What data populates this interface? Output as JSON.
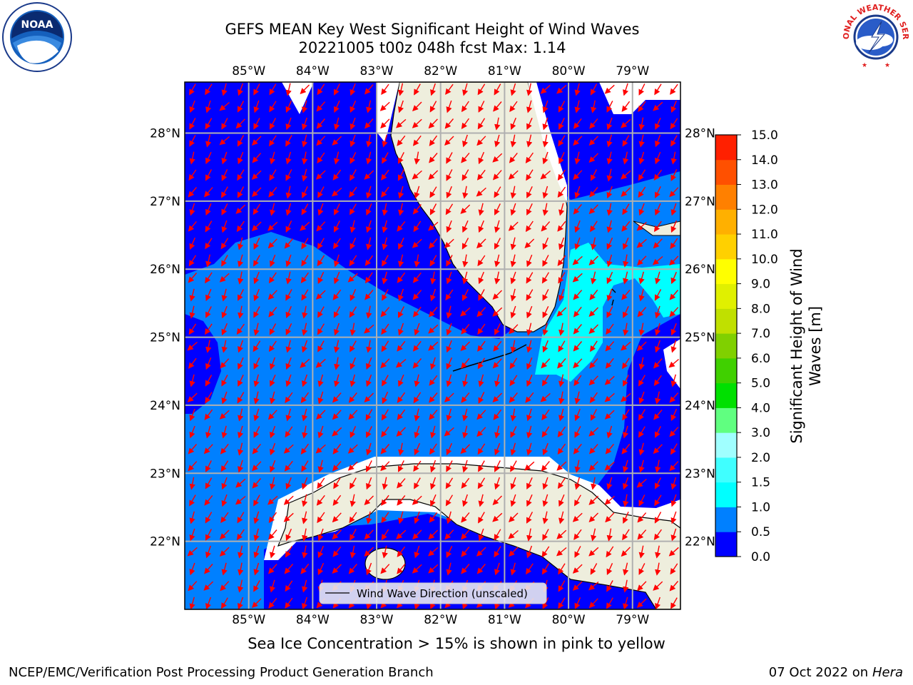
{
  "header": {
    "title_line1": "GEFS MEAN Key West Significant Height of Wind Waves",
    "title_line2": "20221005 t00z 048h fcst   Max: 1.14"
  },
  "logos": {
    "left": "noaa-logo",
    "right": "national-weather-service-logo",
    "left_text": "NOAA",
    "right_text": "NATIONAL WEATHER SERVICE"
  },
  "chart_data": {
    "type": "heatmap",
    "title": "GEFS MEAN Key West Significant Height of Wind Waves",
    "variable": "Significant Height of Wind Waves [m]",
    "max_value": 1.14,
    "lon_range": [
      -86.0,
      -78.25
    ],
    "lat_range": [
      21.0,
      28.75
    ],
    "x_tick_labels": [
      "85°W",
      "84°W",
      "83°W",
      "82°W",
      "81°W",
      "80°W",
      "79°W"
    ],
    "y_tick_labels": [
      "28°N",
      "27°N",
      "26°N",
      "25°N",
      "24°N",
      "23°N",
      "22°N"
    ],
    "grid": true,
    "legend": {
      "location": "bottom-center",
      "entries": [
        "Wind Wave Direction (unscaled)"
      ]
    },
    "colorbar": {
      "label": "Significant Height of Wind Waves [m]",
      "ticks": [
        "0.0",
        "0.5",
        "1.0",
        "1.5",
        "2.0",
        "3.0",
        "4.0",
        "5.0",
        "6.0",
        "7.0",
        "8.0",
        "9.0",
        "10.0",
        "11.0",
        "12.0",
        "13.0",
        "14.0",
        "15.0"
      ],
      "colors": [
        "#0000ff",
        "#0080ff",
        "#00ffff",
        "#40ffff",
        "#a0ffff",
        "#60ff80",
        "#00e000",
        "#40d000",
        "#80d000",
        "#c0e000",
        "#e0f000",
        "#ffff00",
        "#ffd000",
        "#ffb000",
        "#ff8000",
        "#ff5000",
        "#ff2000"
      ]
    },
    "land_color": "#eeeedd",
    "arrow_color": "#ff0000",
    "ocean_classes": [
      {
        "range": "0.0–0.5",
        "color": "#0000ff"
      },
      {
        "range": "0.5–1.0",
        "color": "#0080ff"
      },
      {
        "range": "1.0–1.5",
        "color": "#00ffff"
      }
    ]
  },
  "notes": {
    "ice": "Sea Ice Concentration > 15% is shown in pink to yellow"
  },
  "footer": {
    "left": "NCEP/EMC/Verification Post Processing Product Generation Branch",
    "date": "07 Oct 2022 on ",
    "machine": "Hera"
  }
}
